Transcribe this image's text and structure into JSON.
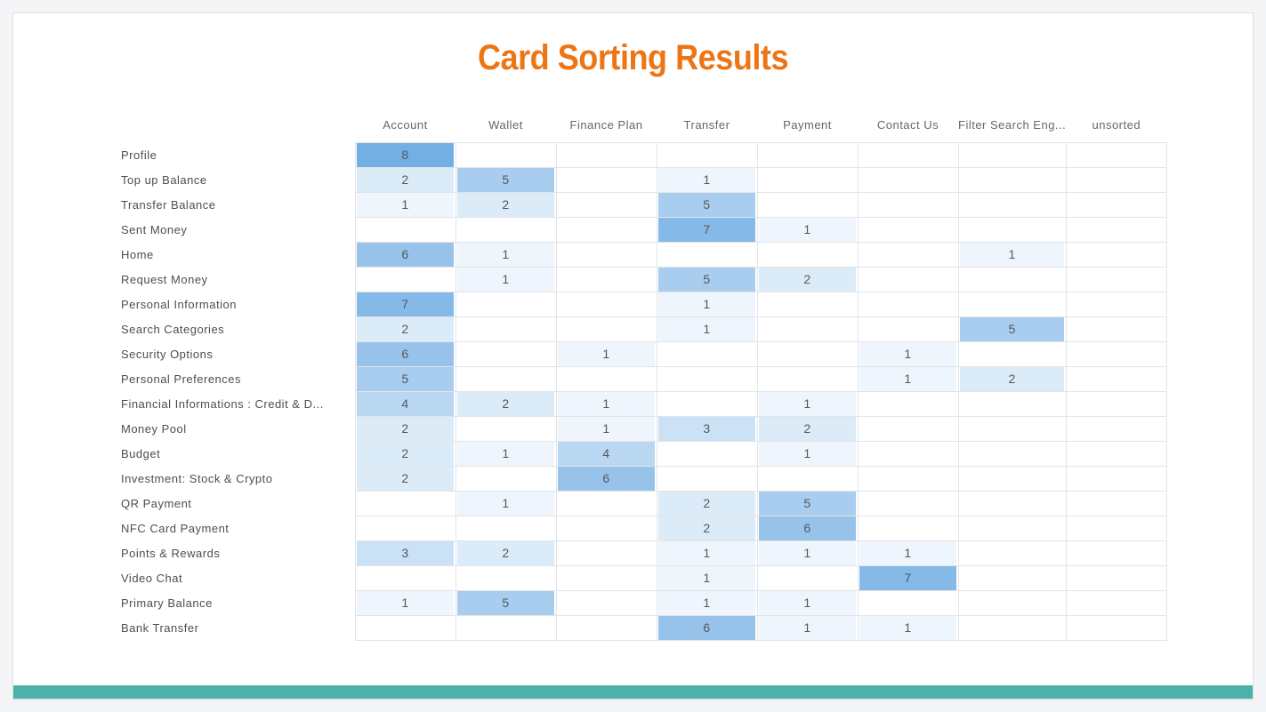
{
  "page": {
    "title": "Card Sorting Results",
    "title_color": "#ED7514",
    "footer_bar_color": "#4AB2AB"
  },
  "chart_data": {
    "type": "heatmap",
    "title": "Card Sorting Results",
    "columns": [
      "Account",
      "Wallet",
      "Finance Plan",
      "Transfer",
      "Payment",
      "Contact Us",
      "Filter Search Eng...",
      "unsorted"
    ],
    "rows": [
      "Profile",
      "Top up Balance",
      "Transfer Balance",
      "Sent Money",
      "Home",
      "Request Money",
      "Personal Information",
      "Search Categories",
      "Security Options",
      "Personal Preferences",
      "Financial Informations : Credit & D...",
      "Money Pool",
      "Budget",
      "Investment: Stock & Crypto",
      "QR Payment",
      "NFC Card Payment",
      "Points & Rewards",
      "Video Chat",
      "Primary Balance",
      "Bank Transfer"
    ],
    "values": [
      [
        8,
        0,
        0,
        0,
        0,
        0,
        0,
        0
      ],
      [
        2,
        5,
        0,
        1,
        0,
        0,
        0,
        0
      ],
      [
        1,
        2,
        0,
        5,
        0,
        0,
        0,
        0
      ],
      [
        0,
        0,
        0,
        7,
        1,
        0,
        0,
        0
      ],
      [
        6,
        1,
        0,
        0,
        0,
        0,
        1,
        0
      ],
      [
        0,
        1,
        0,
        5,
        2,
        0,
        0,
        0
      ],
      [
        7,
        0,
        0,
        1,
        0,
        0,
        0,
        0
      ],
      [
        2,
        0,
        0,
        1,
        0,
        0,
        5,
        0
      ],
      [
        6,
        0,
        1,
        0,
        0,
        1,
        0,
        0
      ],
      [
        5,
        0,
        0,
        0,
        0,
        1,
        2,
        0
      ],
      [
        4,
        2,
        1,
        0,
        1,
        0,
        0,
        0
      ],
      [
        2,
        0,
        1,
        3,
        2,
        0,
        0,
        0
      ],
      [
        2,
        1,
        4,
        0,
        1,
        0,
        0,
        0
      ],
      [
        2,
        0,
        6,
        0,
        0,
        0,
        0,
        0
      ],
      [
        0,
        1,
        0,
        2,
        5,
        0,
        0,
        0
      ],
      [
        0,
        0,
        0,
        2,
        6,
        0,
        0,
        0
      ],
      [
        3,
        2,
        0,
        1,
        1,
        1,
        0,
        0
      ],
      [
        0,
        0,
        0,
        1,
        0,
        7,
        0,
        0
      ],
      [
        1,
        5,
        0,
        1,
        1,
        0,
        0,
        0
      ],
      [
        0,
        0,
        0,
        6,
        1,
        1,
        0,
        0
      ]
    ],
    "max_value": 8,
    "heat_color_min": "#FFFFFF",
    "heat_color_max": "#74AFE4",
    "legend_position": "none",
    "grid": true
  }
}
